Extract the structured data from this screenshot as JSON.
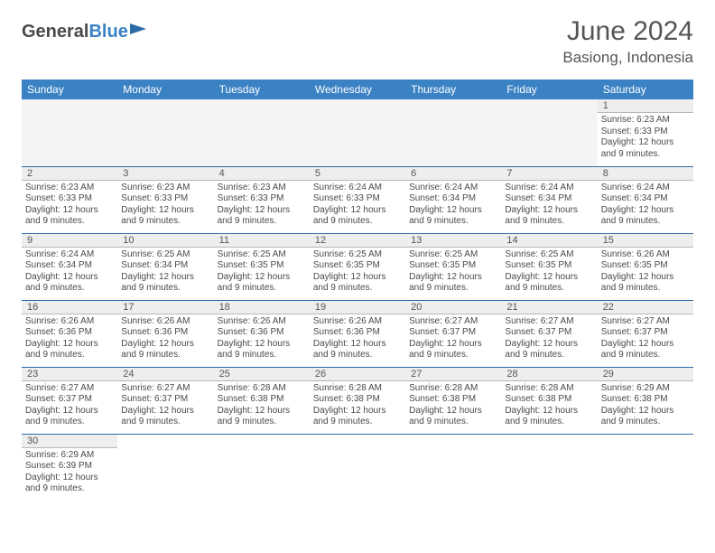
{
  "logo": {
    "part1": "General",
    "part2": "Blue"
  },
  "title": "June 2024",
  "location": "Basiong, Indonesia",
  "style": {
    "header_bg": "#3b82c4",
    "header_fg": "#ffffff",
    "daynum_bg": "#eeeeee",
    "rule_color": "#2c6ca8",
    "body_font_size": 10,
    "daynum_font_size": 11,
    "title_font_size": 30,
    "location_font_size": 17
  },
  "weekdays": [
    "Sunday",
    "Monday",
    "Tuesday",
    "Wednesday",
    "Thursday",
    "Friday",
    "Saturday"
  ],
  "weeks": [
    [
      null,
      null,
      null,
      null,
      null,
      null,
      {
        "d": "1",
        "sr": "Sunrise: 6:23 AM",
        "ss": "Sunset: 6:33 PM",
        "dl1": "Daylight: 12 hours",
        "dl2": "and 9 minutes."
      }
    ],
    [
      {
        "d": "2",
        "sr": "Sunrise: 6:23 AM",
        "ss": "Sunset: 6:33 PM",
        "dl1": "Daylight: 12 hours",
        "dl2": "and 9 minutes."
      },
      {
        "d": "3",
        "sr": "Sunrise: 6:23 AM",
        "ss": "Sunset: 6:33 PM",
        "dl1": "Daylight: 12 hours",
        "dl2": "and 9 minutes."
      },
      {
        "d": "4",
        "sr": "Sunrise: 6:23 AM",
        "ss": "Sunset: 6:33 PM",
        "dl1": "Daylight: 12 hours",
        "dl2": "and 9 minutes."
      },
      {
        "d": "5",
        "sr": "Sunrise: 6:24 AM",
        "ss": "Sunset: 6:33 PM",
        "dl1": "Daylight: 12 hours",
        "dl2": "and 9 minutes."
      },
      {
        "d": "6",
        "sr": "Sunrise: 6:24 AM",
        "ss": "Sunset: 6:34 PM",
        "dl1": "Daylight: 12 hours",
        "dl2": "and 9 minutes."
      },
      {
        "d": "7",
        "sr": "Sunrise: 6:24 AM",
        "ss": "Sunset: 6:34 PM",
        "dl1": "Daylight: 12 hours",
        "dl2": "and 9 minutes."
      },
      {
        "d": "8",
        "sr": "Sunrise: 6:24 AM",
        "ss": "Sunset: 6:34 PM",
        "dl1": "Daylight: 12 hours",
        "dl2": "and 9 minutes."
      }
    ],
    [
      {
        "d": "9",
        "sr": "Sunrise: 6:24 AM",
        "ss": "Sunset: 6:34 PM",
        "dl1": "Daylight: 12 hours",
        "dl2": "and 9 minutes."
      },
      {
        "d": "10",
        "sr": "Sunrise: 6:25 AM",
        "ss": "Sunset: 6:34 PM",
        "dl1": "Daylight: 12 hours",
        "dl2": "and 9 minutes."
      },
      {
        "d": "11",
        "sr": "Sunrise: 6:25 AM",
        "ss": "Sunset: 6:35 PM",
        "dl1": "Daylight: 12 hours",
        "dl2": "and 9 minutes."
      },
      {
        "d": "12",
        "sr": "Sunrise: 6:25 AM",
        "ss": "Sunset: 6:35 PM",
        "dl1": "Daylight: 12 hours",
        "dl2": "and 9 minutes."
      },
      {
        "d": "13",
        "sr": "Sunrise: 6:25 AM",
        "ss": "Sunset: 6:35 PM",
        "dl1": "Daylight: 12 hours",
        "dl2": "and 9 minutes."
      },
      {
        "d": "14",
        "sr": "Sunrise: 6:25 AM",
        "ss": "Sunset: 6:35 PM",
        "dl1": "Daylight: 12 hours",
        "dl2": "and 9 minutes."
      },
      {
        "d": "15",
        "sr": "Sunrise: 6:26 AM",
        "ss": "Sunset: 6:35 PM",
        "dl1": "Daylight: 12 hours",
        "dl2": "and 9 minutes."
      }
    ],
    [
      {
        "d": "16",
        "sr": "Sunrise: 6:26 AM",
        "ss": "Sunset: 6:36 PM",
        "dl1": "Daylight: 12 hours",
        "dl2": "and 9 minutes."
      },
      {
        "d": "17",
        "sr": "Sunrise: 6:26 AM",
        "ss": "Sunset: 6:36 PM",
        "dl1": "Daylight: 12 hours",
        "dl2": "and 9 minutes."
      },
      {
        "d": "18",
        "sr": "Sunrise: 6:26 AM",
        "ss": "Sunset: 6:36 PM",
        "dl1": "Daylight: 12 hours",
        "dl2": "and 9 minutes."
      },
      {
        "d": "19",
        "sr": "Sunrise: 6:26 AM",
        "ss": "Sunset: 6:36 PM",
        "dl1": "Daylight: 12 hours",
        "dl2": "and 9 minutes."
      },
      {
        "d": "20",
        "sr": "Sunrise: 6:27 AM",
        "ss": "Sunset: 6:37 PM",
        "dl1": "Daylight: 12 hours",
        "dl2": "and 9 minutes."
      },
      {
        "d": "21",
        "sr": "Sunrise: 6:27 AM",
        "ss": "Sunset: 6:37 PM",
        "dl1": "Daylight: 12 hours",
        "dl2": "and 9 minutes."
      },
      {
        "d": "22",
        "sr": "Sunrise: 6:27 AM",
        "ss": "Sunset: 6:37 PM",
        "dl1": "Daylight: 12 hours",
        "dl2": "and 9 minutes."
      }
    ],
    [
      {
        "d": "23",
        "sr": "Sunrise: 6:27 AM",
        "ss": "Sunset: 6:37 PM",
        "dl1": "Daylight: 12 hours",
        "dl2": "and 9 minutes."
      },
      {
        "d": "24",
        "sr": "Sunrise: 6:27 AM",
        "ss": "Sunset: 6:37 PM",
        "dl1": "Daylight: 12 hours",
        "dl2": "and 9 minutes."
      },
      {
        "d": "25",
        "sr": "Sunrise: 6:28 AM",
        "ss": "Sunset: 6:38 PM",
        "dl1": "Daylight: 12 hours",
        "dl2": "and 9 minutes."
      },
      {
        "d": "26",
        "sr": "Sunrise: 6:28 AM",
        "ss": "Sunset: 6:38 PM",
        "dl1": "Daylight: 12 hours",
        "dl2": "and 9 minutes."
      },
      {
        "d": "27",
        "sr": "Sunrise: 6:28 AM",
        "ss": "Sunset: 6:38 PM",
        "dl1": "Daylight: 12 hours",
        "dl2": "and 9 minutes."
      },
      {
        "d": "28",
        "sr": "Sunrise: 6:28 AM",
        "ss": "Sunset: 6:38 PM",
        "dl1": "Daylight: 12 hours",
        "dl2": "and 9 minutes."
      },
      {
        "d": "29",
        "sr": "Sunrise: 6:29 AM",
        "ss": "Sunset: 6:38 PM",
        "dl1": "Daylight: 12 hours",
        "dl2": "and 9 minutes."
      }
    ],
    [
      {
        "d": "30",
        "sr": "Sunrise: 6:29 AM",
        "ss": "Sunset: 6:39 PM",
        "dl1": "Daylight: 12 hours",
        "dl2": "and 9 minutes."
      },
      null,
      null,
      null,
      null,
      null,
      null
    ]
  ]
}
